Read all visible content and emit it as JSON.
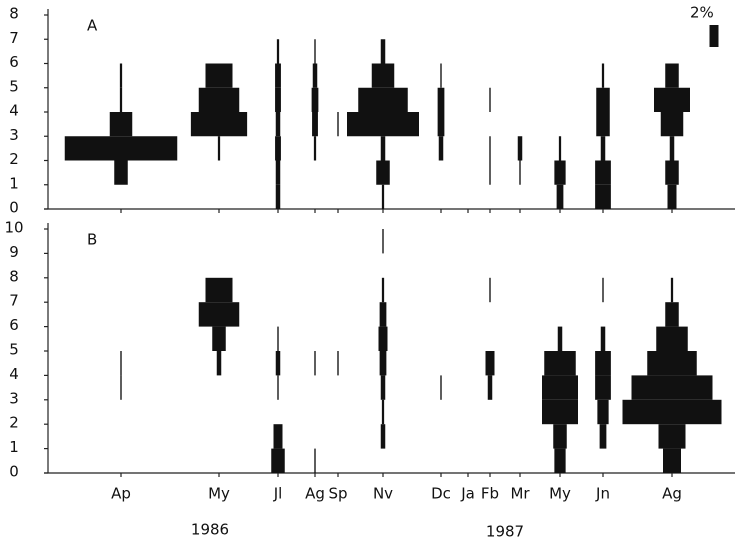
{
  "chart_data": {
    "type": "kite",
    "color": "#111111",
    "categories": [
      "Ap",
      "My",
      "Jl",
      "Ag",
      "Sp",
      "Nv",
      "Dc",
      "Ja",
      "Fb",
      "Mr",
      "My",
      "Jn",
      "Ag"
    ],
    "years": [
      "1986",
      "1987"
    ],
    "scale_label": "2%",
    "scale_value": 2,
    "panels": [
      {
        "label": "A",
        "ylim": [
          0,
          8
        ],
        "yticks": [
          0,
          1,
          2,
          3,
          4,
          5,
          6,
          7,
          8
        ],
        "values": [
          [
            0,
            3,
            25,
            5,
            0.5,
            0.5,
            0,
            0
          ],
          [
            0,
            0,
            0.5,
            12.5,
            9,
            6,
            0,
            0
          ],
          [
            1,
            1,
            1.3,
            1,
            1.3,
            1.3,
            0.5,
            0
          ],
          [
            0,
            0,
            0.5,
            1.3,
            1.5,
            1,
            0.3,
            0
          ],
          [
            0,
            0,
            0,
            0.3,
            0,
            0,
            0,
            0
          ],
          [
            0.5,
            3,
            1,
            16,
            11,
            5,
            1,
            0
          ],
          [
            0,
            0,
            1,
            1.5,
            1.5,
            0.3,
            0,
            0
          ],
          [
            0,
            0,
            0,
            0,
            0,
            0,
            0,
            0
          ],
          [
            0,
            0.3,
            0.3,
            0,
            0.3,
            0,
            0,
            0
          ],
          [
            0,
            0.3,
            1,
            0,
            0,
            0,
            0,
            0
          ],
          [
            1.5,
            2.5,
            0.5,
            0,
            0,
            0,
            0,
            0
          ],
          [
            3.5,
            3.5,
            1,
            3,
            3,
            0.5,
            0,
            0
          ],
          [
            2,
            3,
            1,
            5,
            8,
            3,
            0,
            0
          ]
        ]
      },
      {
        "label": "B",
        "ylim": [
          0,
          10
        ],
        "yticks": [
          0,
          1,
          2,
          3,
          4,
          5,
          6,
          7,
          8,
          9,
          10
        ],
        "values": [
          [
            0,
            0,
            0,
            0.3,
            0.3,
            0,
            0,
            0,
            0,
            0
          ],
          [
            0,
            0,
            0,
            0,
            1,
            3,
            9,
            6,
            0,
            0
          ],
          [
            3,
            2,
            0,
            0.3,
            1,
            0.3,
            0,
            0,
            0,
            0
          ],
          [
            0.3,
            0,
            0,
            0,
            0.3,
            0,
            0,
            0,
            0,
            0
          ],
          [
            0,
            0,
            0,
            0,
            0.3,
            0,
            0,
            0,
            0,
            0
          ],
          [
            0,
            1,
            0.5,
            1,
            1.5,
            2,
            1.5,
            0.5,
            0,
            0.3
          ],
          [
            0,
            0,
            0,
            0.3,
            0,
            0,
            0,
            0,
            0,
            0
          ],
          [
            0,
            0,
            0,
            0,
            0,
            0,
            0,
            0,
            0,
            0
          ],
          [
            0,
            0,
            0,
            1,
            2,
            0,
            0,
            0.3,
            0,
            0
          ],
          [
            0,
            0,
            0,
            0,
            0,
            0,
            0,
            0,
            0,
            0
          ],
          [
            2.5,
            3,
            8,
            8,
            7,
            1,
            0,
            0,
            0,
            0
          ],
          [
            0,
            1.5,
            2.5,
            3.5,
            3.5,
            1,
            0,
            0.3,
            0,
            0
          ],
          [
            4,
            6,
            22,
            18,
            11,
            7,
            3,
            0.5,
            0,
            0
          ]
        ]
      }
    ]
  }
}
